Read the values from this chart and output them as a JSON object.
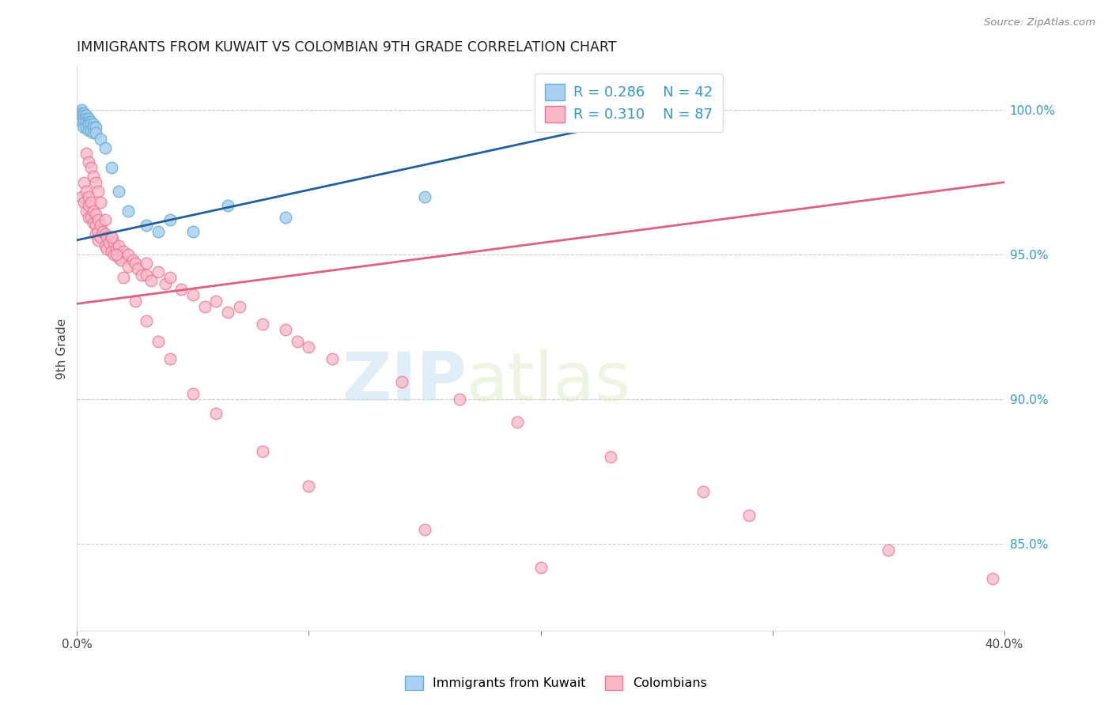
{
  "title": "IMMIGRANTS FROM KUWAIT VS COLOMBIAN 9TH GRADE CORRELATION CHART",
  "source": "Source: ZipAtlas.com",
  "ylabel": "9th Grade",
  "ylabel_right_labels": [
    "100.0%",
    "95.0%",
    "90.0%",
    "85.0%"
  ],
  "ylabel_right_values": [
    1.0,
    0.95,
    0.9,
    0.85
  ],
  "legend_r1": "R = 0.286",
  "legend_n1": "N = 42",
  "legend_r2": "R = 0.310",
  "legend_n2": "N = 87",
  "blue_marker_face": "#a8d0f0",
  "blue_marker_edge": "#6aaed6",
  "pink_marker_face": "#f9b8c8",
  "pink_marker_edge": "#f07090",
  "trend_blue": "#2060a0",
  "trend_pink": "#e06080",
  "watermark_zip": "ZIP",
  "watermark_atlas": "atlas",
  "legend_label1": "Immigrants from Kuwait",
  "legend_label2": "Colombians",
  "xlim": [
    0.0,
    0.4
  ],
  "ylim": [
    0.82,
    1.015
  ],
  "blue_x": [
    0.001,
    0.001,
    0.001,
    0.002,
    0.002,
    0.002,
    0.002,
    0.002,
    0.003,
    0.003,
    0.003,
    0.003,
    0.003,
    0.004,
    0.004,
    0.004,
    0.004,
    0.005,
    0.005,
    0.005,
    0.005,
    0.006,
    0.006,
    0.006,
    0.007,
    0.007,
    0.007,
    0.008,
    0.008,
    0.01,
    0.012,
    0.015,
    0.018,
    0.022,
    0.03,
    0.035,
    0.04,
    0.05,
    0.065,
    0.09,
    0.15,
    0.265
  ],
  "blue_y": [
    0.999,
    0.998,
    0.997,
    1.0,
    0.999,
    0.998,
    0.997,
    0.996,
    0.999,
    0.998,
    0.997,
    0.996,
    0.994,
    0.998,
    0.997,
    0.996,
    0.994,
    0.997,
    0.996,
    0.995,
    0.993,
    0.996,
    0.995,
    0.993,
    0.995,
    0.994,
    0.992,
    0.994,
    0.992,
    0.99,
    0.987,
    0.98,
    0.972,
    0.965,
    0.96,
    0.958,
    0.962,
    0.958,
    0.967,
    0.963,
    0.97,
    1.001
  ],
  "pink_x": [
    0.002,
    0.003,
    0.003,
    0.004,
    0.004,
    0.005,
    0.005,
    0.005,
    0.006,
    0.006,
    0.007,
    0.007,
    0.008,
    0.008,
    0.008,
    0.009,
    0.009,
    0.009,
    0.01,
    0.01,
    0.011,
    0.012,
    0.012,
    0.013,
    0.013,
    0.014,
    0.015,
    0.015,
    0.016,
    0.016,
    0.017,
    0.018,
    0.018,
    0.019,
    0.02,
    0.022,
    0.022,
    0.024,
    0.025,
    0.026,
    0.028,
    0.03,
    0.03,
    0.032,
    0.035,
    0.038,
    0.04,
    0.045,
    0.05,
    0.055,
    0.06,
    0.065,
    0.07,
    0.08,
    0.09,
    0.095,
    0.1,
    0.11,
    0.14,
    0.165,
    0.19,
    0.23,
    0.27,
    0.29,
    0.35,
    0.395,
    0.004,
    0.005,
    0.006,
    0.007,
    0.008,
    0.009,
    0.01,
    0.012,
    0.015,
    0.017,
    0.02,
    0.025,
    0.03,
    0.035,
    0.04,
    0.05,
    0.06,
    0.08,
    0.1,
    0.15,
    0.2
  ],
  "pink_y": [
    0.97,
    0.975,
    0.968,
    0.972,
    0.965,
    0.97,
    0.967,
    0.963,
    0.968,
    0.963,
    0.965,
    0.961,
    0.964,
    0.96,
    0.957,
    0.962,
    0.958,
    0.955,
    0.96,
    0.956,
    0.958,
    0.957,
    0.953,
    0.956,
    0.952,
    0.954,
    0.956,
    0.951,
    0.954,
    0.95,
    0.952,
    0.953,
    0.949,
    0.948,
    0.951,
    0.95,
    0.946,
    0.948,
    0.947,
    0.945,
    0.943,
    0.947,
    0.943,
    0.941,
    0.944,
    0.94,
    0.942,
    0.938,
    0.936,
    0.932,
    0.934,
    0.93,
    0.932,
    0.926,
    0.924,
    0.92,
    0.918,
    0.914,
    0.906,
    0.9,
    0.892,
    0.88,
    0.868,
    0.86,
    0.848,
    0.838,
    0.985,
    0.982,
    0.98,
    0.977,
    0.975,
    0.972,
    0.968,
    0.962,
    0.956,
    0.95,
    0.942,
    0.934,
    0.927,
    0.92,
    0.914,
    0.902,
    0.895,
    0.882,
    0.87,
    0.855,
    0.842
  ]
}
